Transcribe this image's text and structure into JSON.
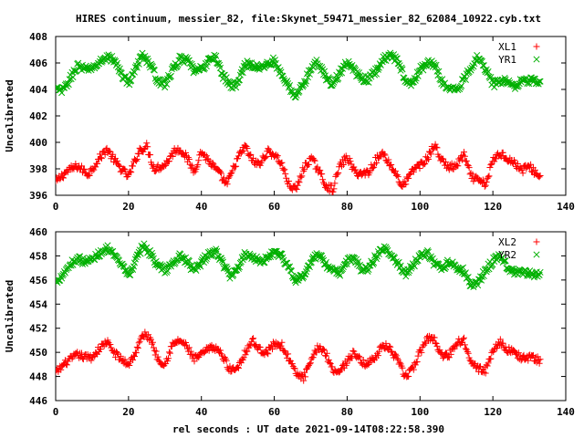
{
  "page_title": "HIRES continuum, messier_82, file:Skynet_59471_messier_82_62084_10922.cyb.txt",
  "xlabel": "rel seconds : UT date 2021-09-14T08:22:58.390",
  "colors": {
    "red": "#ff0000",
    "green": "#00b000",
    "axes": "#000000"
  },
  "chart_data": [
    {
      "type": "scatter",
      "ylabel": "Uncalibrated",
      "xlim": [
        0,
        140
      ],
      "ylim": [
        396,
        408
      ],
      "xticks": [
        0,
        20,
        40,
        60,
        80,
        100,
        120,
        140
      ],
      "yticks": [
        396,
        398,
        400,
        402,
        404,
        406,
        408
      ],
      "legend_position": "top-right",
      "x_max_data": 133,
      "series": [
        {
          "name": "XL1",
          "marker": "plus",
          "color": "#ff0000",
          "mean": 397.9,
          "anchors": [
            [
              0,
              397.0
            ],
            [
              3,
              397.8
            ],
            [
              6,
              398.2
            ],
            [
              9,
              397.6
            ],
            [
              12,
              398.8
            ],
            [
              14,
              399.5
            ],
            [
              17,
              398.3
            ],
            [
              20,
              397.4
            ],
            [
              23,
              399.4
            ],
            [
              25,
              399.7
            ],
            [
              27,
              398.0
            ],
            [
              30,
              398.3
            ],
            [
              33,
              399.5
            ],
            [
              35,
              399.3
            ],
            [
              38,
              397.8
            ],
            [
              40,
              399.3
            ],
            [
              42,
              398.6
            ],
            [
              45,
              397.6
            ],
            [
              47,
              396.8
            ],
            [
              50,
              398.8
            ],
            [
              52,
              399.7
            ],
            [
              54,
              398.6
            ],
            [
              56,
              398.3
            ],
            [
              58,
              399.3
            ],
            [
              60,
              399.1
            ],
            [
              62,
              398.4
            ],
            [
              64,
              396.8
            ],
            [
              66,
              396.4
            ],
            [
              68,
              398.0
            ],
            [
              70,
              398.8
            ],
            [
              72,
              398.0
            ],
            [
              74,
              396.8
            ],
            [
              76,
              396.4
            ],
            [
              78,
              398.2
            ],
            [
              80,
              398.9
            ],
            [
              82,
              397.8
            ],
            [
              84,
              397.6
            ],
            [
              86,
              397.8
            ],
            [
              88,
              398.7
            ],
            [
              90,
              399.2
            ],
            [
              92,
              398.2
            ],
            [
              94,
              397.4
            ],
            [
              95,
              396.6
            ],
            [
              97,
              397.4
            ],
            [
              99,
              398.2
            ],
            [
              101,
              398.4
            ],
            [
              103,
              399.3
            ],
            [
              104,
              399.8
            ],
            [
              106,
              398.6
            ],
            [
              108,
              398.1
            ],
            [
              110,
              398.2
            ],
            [
              112,
              399.1
            ],
            [
              114,
              397.4
            ],
            [
              116,
              397.1
            ],
            [
              118,
              396.8
            ],
            [
              120,
              398.6
            ],
            [
              122,
              399.2
            ],
            [
              124,
              398.8
            ],
            [
              126,
              398.4
            ],
            [
              128,
              397.9
            ],
            [
              130,
              398.2
            ],
            [
              132,
              397.6
            ],
            [
              133,
              397.4
            ]
          ]
        },
        {
          "name": "YR1",
          "marker": "cross",
          "color": "#00b000",
          "mean": 405.2,
          "anchors": [
            [
              0,
              404.0
            ],
            [
              2,
              403.9
            ],
            [
              4,
              404.8
            ],
            [
              6,
              405.8
            ],
            [
              8,
              405.5
            ],
            [
              10,
              405.6
            ],
            [
              12,
              406.0
            ],
            [
              14,
              406.5
            ],
            [
              16,
              406.2
            ],
            [
              18,
              405.2
            ],
            [
              20,
              404.5
            ],
            [
              22,
              405.6
            ],
            [
              24,
              406.7
            ],
            [
              26,
              405.8
            ],
            [
              28,
              404.7
            ],
            [
              30,
              404.4
            ],
            [
              32,
              405.4
            ],
            [
              34,
              406.3
            ],
            [
              36,
              406.2
            ],
            [
              38,
              405.4
            ],
            [
              40,
              405.5
            ],
            [
              42,
              406.2
            ],
            [
              44,
              406.4
            ],
            [
              46,
              405.0
            ],
            [
              48,
              404.3
            ],
            [
              50,
              404.4
            ],
            [
              52,
              406.0
            ],
            [
              54,
              405.8
            ],
            [
              56,
              405.6
            ],
            [
              58,
              405.9
            ],
            [
              60,
              406.2
            ],
            [
              62,
              405.0
            ],
            [
              64,
              404.2
            ],
            [
              66,
              403.5
            ],
            [
              68,
              404.4
            ],
            [
              70,
              405.5
            ],
            [
              72,
              406.1
            ],
            [
              74,
              405.0
            ],
            [
              76,
              404.3
            ],
            [
              78,
              405.3
            ],
            [
              80,
              406.0
            ],
            [
              82,
              405.4
            ],
            [
              84,
              404.8
            ],
            [
              86,
              404.8
            ],
            [
              88,
              405.4
            ],
            [
              90,
              406.3
            ],
            [
              92,
              406.7
            ],
            [
              94,
              406.0
            ],
            [
              96,
              404.8
            ],
            [
              98,
              404.4
            ],
            [
              100,
              405.5
            ],
            [
              102,
              406.0
            ],
            [
              104,
              405.9
            ],
            [
              106,
              404.6
            ],
            [
              108,
              404.1
            ],
            [
              110,
              403.9
            ],
            [
              112,
              404.7
            ],
            [
              114,
              405.7
            ],
            [
              116,
              406.5
            ],
            [
              118,
              405.6
            ],
            [
              120,
              404.4
            ],
            [
              122,
              404.6
            ],
            [
              124,
              404.7
            ],
            [
              126,
              404.3
            ],
            [
              128,
              404.7
            ],
            [
              130,
              404.7
            ],
            [
              133,
              404.5
            ]
          ]
        }
      ]
    },
    {
      "type": "scatter",
      "ylabel": "Uncalibrated",
      "xlim": [
        0,
        140
      ],
      "ylim": [
        446,
        460
      ],
      "xticks": [
        0,
        20,
        40,
        60,
        80,
        100,
        120,
        140
      ],
      "yticks": [
        446,
        448,
        450,
        452,
        454,
        456,
        458,
        460
      ],
      "legend_position": "top-right",
      "x_max_data": 133,
      "series": [
        {
          "name": "XL2",
          "marker": "plus",
          "color": "#ff0000",
          "mean": 449.8,
          "anchors": [
            [
              0,
              448.3
            ],
            [
              3,
              449.2
            ],
            [
              6,
              449.8
            ],
            [
              8,
              449.6
            ],
            [
              10,
              449.6
            ],
            [
              12,
              450.3
            ],
            [
              14,
              450.9
            ],
            [
              16,
              450.0
            ],
            [
              18,
              449.4
            ],
            [
              20,
              449.0
            ],
            [
              22,
              450.0
            ],
            [
              24,
              451.5
            ],
            [
              26,
              451.2
            ],
            [
              28,
              449.5
            ],
            [
              30,
              449.0
            ],
            [
              32,
              450.6
            ],
            [
              34,
              451.0
            ],
            [
              36,
              450.5
            ],
            [
              38,
              449.4
            ],
            [
              40,
              449.8
            ],
            [
              42,
              450.3
            ],
            [
              44,
              450.4
            ],
            [
              46,
              449.6
            ],
            [
              48,
              448.5
            ],
            [
              50,
              448.8
            ],
            [
              52,
              450.0
            ],
            [
              54,
              451.0
            ],
            [
              56,
              450.2
            ],
            [
              58,
              450.0
            ],
            [
              60,
              450.7
            ],
            [
              62,
              450.6
            ],
            [
              64,
              449.5
            ],
            [
              66,
              448.2
            ],
            [
              68,
              447.9
            ],
            [
              70,
              449.1
            ],
            [
              72,
              450.5
            ],
            [
              74,
              450.0
            ],
            [
              76,
              448.6
            ],
            [
              78,
              448.4
            ],
            [
              80,
              449.3
            ],
            [
              82,
              450.0
            ],
            [
              84,
              449.1
            ],
            [
              86,
              449.1
            ],
            [
              88,
              449.8
            ],
            [
              90,
              450.6
            ],
            [
              92,
              450.2
            ],
            [
              94,
              449.2
            ],
            [
              96,
              448.0
            ],
            [
              98,
              448.6
            ],
            [
              100,
              450.0
            ],
            [
              102,
              451.2
            ],
            [
              104,
              451.1
            ],
            [
              106,
              449.7
            ],
            [
              108,
              449.8
            ],
            [
              110,
              450.8
            ],
            [
              112,
              451.0
            ],
            [
              114,
              449.4
            ],
            [
              116,
              448.6
            ],
            [
              118,
              448.5
            ],
            [
              120,
              450.2
            ],
            [
              122,
              450.9
            ],
            [
              124,
              450.2
            ],
            [
              126,
              450.0
            ],
            [
              128,
              449.5
            ],
            [
              130,
              449.6
            ],
            [
              133,
              449.3
            ]
          ]
        },
        {
          "name": "YR2",
          "marker": "cross",
          "color": "#00b000",
          "mean": 457.3,
          "anchors": [
            [
              0,
              455.8
            ],
            [
              2,
              456.5
            ],
            [
              4,
              457.3
            ],
            [
              6,
              457.8
            ],
            [
              8,
              457.5
            ],
            [
              10,
              457.7
            ],
            [
              12,
              458.2
            ],
            [
              14,
              458.7
            ],
            [
              16,
              458.0
            ],
            [
              18,
              457.2
            ],
            [
              20,
              456.4
            ],
            [
              22,
              457.6
            ],
            [
              24,
              458.9
            ],
            [
              26,
              458.2
            ],
            [
              28,
              457.2
            ],
            [
              30,
              456.8
            ],
            [
              32,
              457.3
            ],
            [
              34,
              458.0
            ],
            [
              36,
              457.6
            ],
            [
              38,
              456.7
            ],
            [
              40,
              457.5
            ],
            [
              42,
              458.1
            ],
            [
              44,
              458.4
            ],
            [
              46,
              457.3
            ],
            [
              48,
              456.3
            ],
            [
              50,
              457.0
            ],
            [
              52,
              458.2
            ],
            [
              54,
              458.0
            ],
            [
              56,
              457.5
            ],
            [
              58,
              457.8
            ],
            [
              60,
              458.4
            ],
            [
              62,
              458.0
            ],
            [
              64,
              457.0
            ],
            [
              66,
              456.0
            ],
            [
              68,
              456.4
            ],
            [
              70,
              457.4
            ],
            [
              72,
              458.2
            ],
            [
              74,
              457.3
            ],
            [
              76,
              456.7
            ],
            [
              78,
              456.6
            ],
            [
              80,
              457.6
            ],
            [
              82,
              457.8
            ],
            [
              84,
              456.8
            ],
            [
              86,
              457.0
            ],
            [
              88,
              458.0
            ],
            [
              90,
              458.6
            ],
            [
              92,
              458.3
            ],
            [
              94,
              457.3
            ],
            [
              96,
              456.5
            ],
            [
              98,
              457.2
            ],
            [
              100,
              458.0
            ],
            [
              102,
              458.2
            ],
            [
              104,
              457.3
            ],
            [
              106,
              457.0
            ],
            [
              108,
              457.5
            ],
            [
              110,
              457.0
            ],
            [
              112,
              456.8
            ],
            [
              114,
              455.6
            ],
            [
              116,
              455.8
            ],
            [
              118,
              456.8
            ],
            [
              120,
              457.6
            ],
            [
              122,
              458.1
            ],
            [
              124,
              457.1
            ],
            [
              126,
              456.6
            ],
            [
              128,
              456.6
            ],
            [
              130,
              456.5
            ],
            [
              133,
              456.5
            ]
          ]
        }
      ]
    }
  ]
}
